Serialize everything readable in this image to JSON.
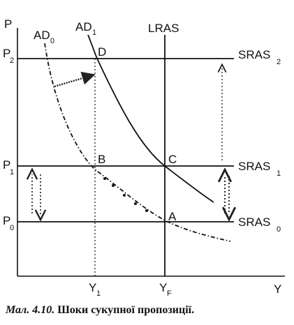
{
  "diagram": {
    "axes": {
      "y_label": "P",
      "x_label": "Y"
    },
    "price_levels": [
      {
        "base": "P",
        "sub": "2"
      },
      {
        "base": "P",
        "sub": "1"
      },
      {
        "base": "P",
        "sub": "0"
      }
    ],
    "output_levels": [
      {
        "base": "Y",
        "sub": "1"
      },
      {
        "base": "Y",
        "sub": "F"
      }
    ],
    "curves": {
      "ad0": {
        "base": "AD",
        "sub": "0"
      },
      "ad1": {
        "base": "AD",
        "sub": "1"
      },
      "lras": {
        "base": "LRAS",
        "sub": ""
      },
      "sras2": {
        "base": "SRAS",
        "sub": "2"
      },
      "sras1": {
        "base": "SRAS",
        "sub": "1"
      },
      "sras0": {
        "base": "SRAS",
        "sub": "0"
      }
    },
    "points": {
      "a": "A",
      "b": "B",
      "c": "C",
      "d": "D"
    }
  },
  "caption": {
    "number": "Мал. 4.10.",
    "title": "Шоки сукупної пропозиції."
  }
}
